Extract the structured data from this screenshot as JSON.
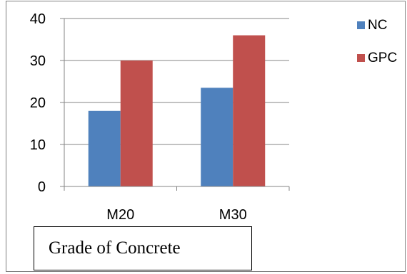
{
  "chart_data": {
    "type": "bar",
    "categories": [
      "M20",
      "M30"
    ],
    "series": [
      {
        "name": "NC",
        "values": [
          18,
          23.5
        ],
        "color": "#4f81bd"
      },
      {
        "name": "GPC",
        "values": [
          30,
          36
        ],
        "color": "#c0504d"
      }
    ],
    "ylim": [
      0,
      40
    ],
    "yticks": [
      0,
      10,
      20,
      30,
      40
    ],
    "grid": true,
    "legend_position": "top-right",
    "caption": "Grade of Concrete"
  }
}
